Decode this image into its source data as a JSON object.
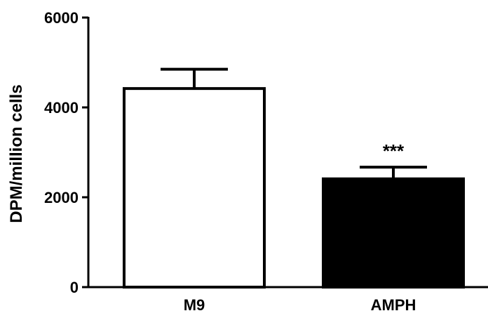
{
  "chart_data": {
    "type": "bar",
    "categories": [
      "M9",
      "AMPH"
    ],
    "values": [
      4420,
      2410
    ],
    "errors": [
      430,
      260
    ],
    "bar_fill": [
      "#ffffff",
      "#000000"
    ],
    "bar_stroke": "#000000",
    "ylabel": "DPM/million cells",
    "xlabel": "",
    "title": "",
    "ylim": [
      0,
      6000
    ],
    "yticks": [
      0,
      2000,
      4000,
      6000
    ],
    "yticklabels": [
      "0",
      "2000",
      "4000",
      "6000"
    ],
    "significance": [
      "",
      "***"
    ],
    "grid": false,
    "legend": "none"
  }
}
